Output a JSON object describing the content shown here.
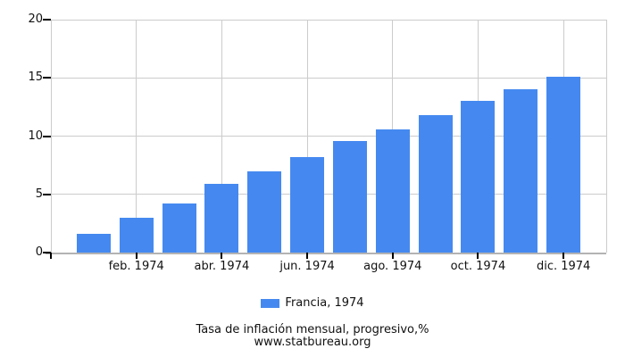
{
  "chart_data": {
    "type": "bar",
    "title": "Tasa de inflación mensual, progresivo,%",
    "source": "www.statbureau.org",
    "legend": "Francia, 1974",
    "bar_count": 12,
    "values": [
      1.6,
      3.0,
      4.2,
      5.9,
      7.0,
      8.2,
      9.6,
      10.6,
      11.8,
      13.0,
      14.0,
      15.1
    ],
    "x_axis": {
      "tick_labels": [
        "feb. 1974",
        "abr. 1974",
        "jun. 1974",
        "ago. 1974",
        "oct. 1974",
        "dic. 1974"
      ],
      "tick_bar_indices": [
        1,
        3,
        5,
        7,
        9,
        11
      ]
    },
    "y_axis": {
      "min": 0,
      "max": 20,
      "ticks": [
        0,
        5,
        10,
        15,
        20
      ],
      "tick_labels": [
        "0",
        "5",
        "10",
        "15",
        "20"
      ]
    },
    "grid": true,
    "legend_position": "bottom",
    "colors": {
      "bar": "#4589F0",
      "grid": "#cccccc",
      "axis": "#b3b3b3",
      "tick": "#000000",
      "text": "#111111"
    }
  }
}
